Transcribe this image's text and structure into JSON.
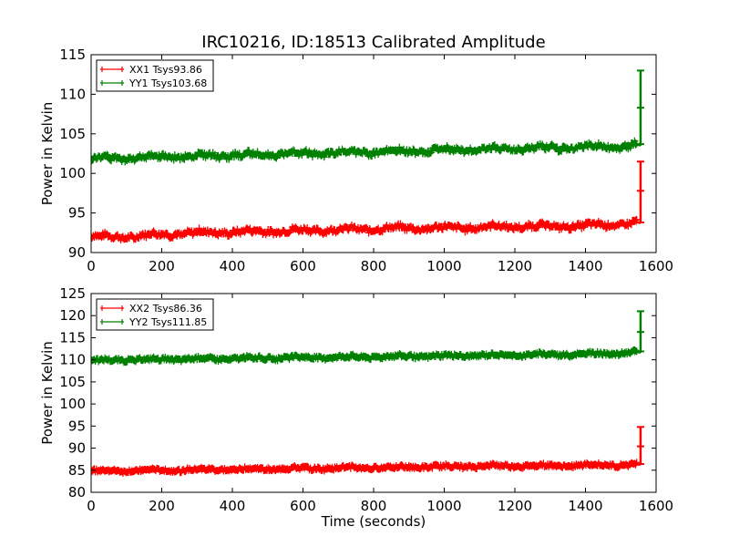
{
  "figure": {
    "title": "IRC10216, ID:18513 Calibrated Amplitude"
  },
  "chart_data": [
    {
      "type": "line",
      "title": "IRC10216, ID:18513 Calibrated Amplitude",
      "xlabel": "",
      "ylabel": "Power in Kelvin",
      "xlim": [
        0,
        1600
      ],
      "ylim": [
        90,
        115
      ],
      "xticks": [
        "0",
        "200",
        "400",
        "600",
        "800",
        "1000",
        "1200",
        "1400",
        "1600"
      ],
      "yticks": [
        "90",
        "95",
        "100",
        "105",
        "110",
        "115"
      ],
      "grid": false,
      "legend_position": "top-left",
      "series": [
        {
          "name": "XX1 Tsys93.86",
          "color": "#ff0000",
          "x": [
            0,
            100,
            200,
            300,
            400,
            500,
            600,
            700,
            800,
            900,
            1000,
            1100,
            1200,
            1300,
            1400,
            1500,
            1545
          ],
          "y": [
            92.0,
            92.0,
            92.3,
            92.5,
            92.6,
            92.7,
            92.8,
            92.9,
            93.0,
            93.1,
            93.1,
            93.2,
            93.3,
            93.3,
            93.4,
            93.6,
            93.8
          ],
          "band": 0.6,
          "spike": {
            "x": 1556,
            "y_min": 93.7,
            "y_max": 101.5,
            "marks": [
              93.8,
              97.8,
              101.5
            ]
          }
        },
        {
          "name": "YY1 Tsys103.68",
          "color": "#008000",
          "x": [
            0,
            100,
            200,
            300,
            400,
            500,
            600,
            700,
            800,
            900,
            1000,
            1100,
            1200,
            1300,
            1400,
            1500,
            1545
          ],
          "y": [
            101.8,
            102.0,
            102.1,
            102.2,
            102.3,
            102.4,
            102.5,
            102.6,
            102.7,
            102.8,
            102.9,
            103.0,
            103.1,
            103.2,
            103.3,
            103.4,
            103.6
          ],
          "band": 0.6,
          "spike": {
            "x": 1556,
            "y_min": 103.5,
            "y_max": 113.0,
            "marks": [
              103.7,
              108.3,
              113.0
            ]
          }
        }
      ]
    },
    {
      "type": "line",
      "title": "",
      "xlabel": "Time (seconds)",
      "ylabel": "Power in Kelvin",
      "xlim": [
        0,
        1600
      ],
      "ylim": [
        80,
        125
      ],
      "xticks": [
        "0",
        "200",
        "400",
        "600",
        "800",
        "1000",
        "1200",
        "1400",
        "1600"
      ],
      "yticks": [
        "80",
        "85",
        "90",
        "95",
        "100",
        "105",
        "110",
        "115",
        "120",
        "125"
      ],
      "grid": false,
      "legend_position": "top-left",
      "series": [
        {
          "name": "XX2 Tsys86.36",
          "color": "#ff0000",
          "x": [
            0,
            100,
            200,
            300,
            400,
            500,
            600,
            700,
            800,
            900,
            1000,
            1100,
            1200,
            1300,
            1400,
            1500,
            1545
          ],
          "y": [
            84.8,
            84.9,
            85.0,
            85.1,
            85.2,
            85.3,
            85.4,
            85.5,
            85.6,
            85.7,
            85.8,
            85.9,
            86.0,
            86.0,
            86.1,
            86.2,
            86.3
          ],
          "band": 0.7,
          "spike": {
            "x": 1556,
            "y_min": 86.2,
            "y_max": 94.8,
            "marks": [
              86.4,
              90.4,
              94.8
            ]
          }
        },
        {
          "name": "YY2 Tsys111.85",
          "color": "#008000",
          "x": [
            0,
            100,
            200,
            300,
            400,
            500,
            600,
            700,
            800,
            900,
            1000,
            1100,
            1200,
            1300,
            1400,
            1500,
            1545
          ],
          "y": [
            109.8,
            110.0,
            110.1,
            110.2,
            110.3,
            110.4,
            110.5,
            110.6,
            110.7,
            110.8,
            110.9,
            111.0,
            111.1,
            111.2,
            111.3,
            111.5,
            111.7
          ],
          "band": 0.7,
          "spike": {
            "x": 1556,
            "y_min": 111.6,
            "y_max": 121.0,
            "marks": [
              111.9,
              116.3,
              121.0
            ]
          }
        }
      ]
    }
  ]
}
